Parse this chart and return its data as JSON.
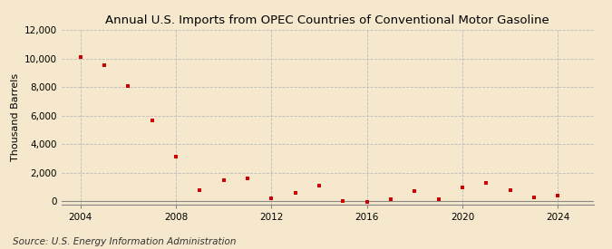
{
  "title": "Annual U.S. Imports from OPEC Countries of Conventional Motor Gasoline",
  "ylabel": "Thousand Barrels",
  "source": "Source: U.S. Energy Information Administration",
  "background_color": "#f5e8cc",
  "marker_color": "#cc0000",
  "years": [
    2004,
    2005,
    2006,
    2007,
    2008,
    2009,
    2010,
    2011,
    2012,
    2013,
    2014,
    2015,
    2016,
    2017,
    2018,
    2019,
    2020,
    2021,
    2022,
    2023,
    2024
  ],
  "values": [
    10100,
    9500,
    8050,
    5650,
    3150,
    800,
    1480,
    1600,
    200,
    600,
    1100,
    50,
    -30,
    130,
    700,
    175,
    950,
    1300,
    800,
    275,
    430
  ],
  "xlim": [
    2003.2,
    2025.5
  ],
  "ylim": [
    -200,
    12000
  ],
  "yticks": [
    0,
    2000,
    4000,
    6000,
    8000,
    10000,
    12000
  ],
  "xticks": [
    2004,
    2008,
    2012,
    2016,
    2020,
    2024
  ],
  "grid_color": "#bbbbbb",
  "title_fontsize": 9.5,
  "label_fontsize": 8,
  "tick_fontsize": 7.5,
  "source_fontsize": 7.5
}
